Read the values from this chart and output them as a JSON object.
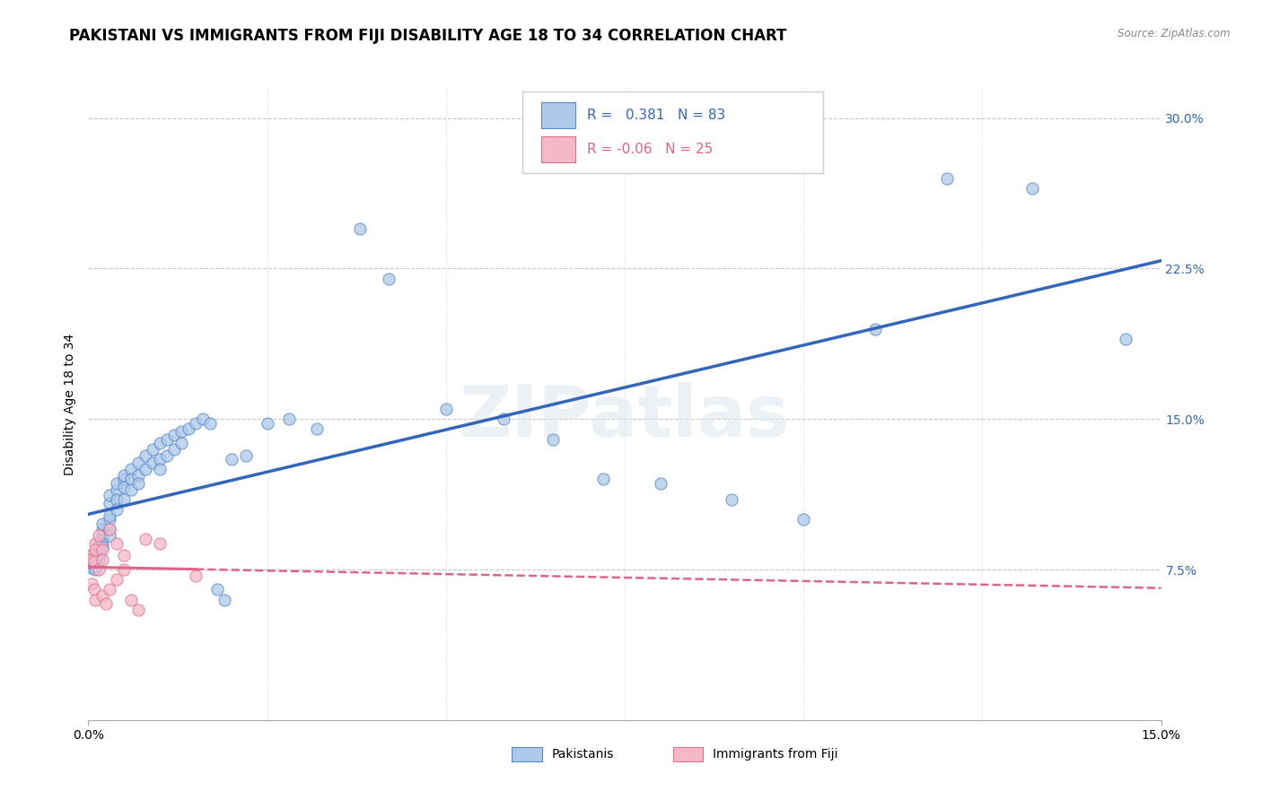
{
  "title": "PAKISTANI VS IMMIGRANTS FROM FIJI DISABILITY AGE 18 TO 34 CORRELATION CHART",
  "source": "Source: ZipAtlas.com",
  "ylabel_label": "Disability Age 18 to 34",
  "ylabel_ticks": [
    0.075,
    0.15,
    0.225,
    0.3
  ],
  "ylabel_tick_labels": [
    "7.5%",
    "15.0%",
    "22.5%",
    "30.0%"
  ],
  "xmin": 0.0,
  "xmax": 0.15,
  "ymin": 0.0,
  "ymax": 0.315,
  "blue_R": 0.381,
  "blue_N": 83,
  "pink_R": -0.06,
  "pink_N": 25,
  "blue_color": "#adc8e8",
  "blue_edge_color": "#5588cc",
  "blue_line_color": "#3366bb",
  "pink_color": "#f4b8c8",
  "pink_edge_color": "#e07090",
  "pink_line_color": "#dd6688",
  "watermark": "ZIPatlas",
  "legend_label_blue": "Pakistanis",
  "legend_label_pink": "Immigrants from Fiji",
  "blue_x": [
    0.0005,
    0.0005,
    0.0005,
    0.0005,
    0.0005,
    0.0008,
    0.0008,
    0.0008,
    0.001,
    0.001,
    0.001,
    0.001,
    0.001,
    0.001,
    0.001,
    0.0015,
    0.0015,
    0.0015,
    0.0015,
    0.0015,
    0.002,
    0.002,
    0.002,
    0.002,
    0.002,
    0.002,
    0.003,
    0.003,
    0.003,
    0.003,
    0.003,
    0.003,
    0.004,
    0.004,
    0.004,
    0.004,
    0.005,
    0.005,
    0.005,
    0.005,
    0.006,
    0.006,
    0.006,
    0.007,
    0.007,
    0.007,
    0.008,
    0.008,
    0.009,
    0.009,
    0.01,
    0.01,
    0.01,
    0.011,
    0.011,
    0.012,
    0.012,
    0.013,
    0.013,
    0.014,
    0.015,
    0.016,
    0.017,
    0.018,
    0.019,
    0.02,
    0.022,
    0.025,
    0.028,
    0.032,
    0.038,
    0.042,
    0.05,
    0.058,
    0.065,
    0.072,
    0.08,
    0.09,
    0.1,
    0.11,
    0.12,
    0.132,
    0.145
  ],
  "blue_y": [
    0.078,
    0.079,
    0.08,
    0.082,
    0.076,
    0.079,
    0.081,
    0.077,
    0.082,
    0.08,
    0.083,
    0.079,
    0.078,
    0.076,
    0.075,
    0.085,
    0.088,
    0.086,
    0.082,
    0.08,
    0.09,
    0.092,
    0.088,
    0.086,
    0.095,
    0.098,
    0.1,
    0.102,
    0.108,
    0.112,
    0.095,
    0.092,
    0.115,
    0.118,
    0.11,
    0.105,
    0.12,
    0.122,
    0.116,
    0.11,
    0.125,
    0.12,
    0.115,
    0.128,
    0.122,
    0.118,
    0.132,
    0.125,
    0.135,
    0.128,
    0.138,
    0.13,
    0.125,
    0.14,
    0.132,
    0.142,
    0.135,
    0.144,
    0.138,
    0.145,
    0.148,
    0.15,
    0.148,
    0.065,
    0.06,
    0.13,
    0.132,
    0.148,
    0.15,
    0.145,
    0.245,
    0.22,
    0.155,
    0.15,
    0.14,
    0.12,
    0.118,
    0.11,
    0.1,
    0.195,
    0.27,
    0.265,
    0.19
  ],
  "pink_x": [
    0.0003,
    0.0005,
    0.0005,
    0.0008,
    0.0008,
    0.001,
    0.001,
    0.001,
    0.0015,
    0.0015,
    0.002,
    0.002,
    0.002,
    0.0025,
    0.003,
    0.003,
    0.004,
    0.004,
    0.005,
    0.005,
    0.006,
    0.007,
    0.008,
    0.01,
    0.015
  ],
  "pink_y": [
    0.082,
    0.08,
    0.068,
    0.079,
    0.065,
    0.088,
    0.085,
    0.06,
    0.092,
    0.075,
    0.085,
    0.08,
    0.062,
    0.058,
    0.095,
    0.065,
    0.088,
    0.07,
    0.082,
    0.075,
    0.06,
    0.055,
    0.09,
    0.088,
    0.072
  ],
  "grid_color": "#bbbbbb",
  "background_color": "#ffffff",
  "title_fontsize": 12,
  "axis_fontsize": 10,
  "tick_fontsize": 10
}
